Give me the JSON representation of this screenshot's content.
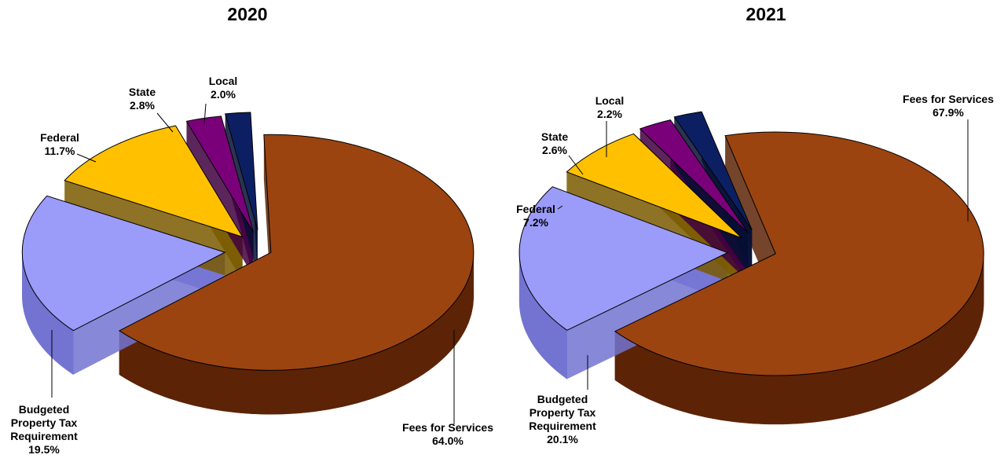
{
  "chart_data": [
    {
      "type": "pie",
      "title": "2020",
      "slices": [
        {
          "name": "Fees for Services",
          "value": 64.0,
          "label": "64.0%",
          "color": "#9B4410",
          "side_color": "#5C2306"
        },
        {
          "name": "Budgeted Property Tax Requirement",
          "value": 19.5,
          "label": "19.5%",
          "color": "#9B9BFA",
          "side_color": "#7373D2"
        },
        {
          "name": "Federal",
          "value": 11.7,
          "label": "11.7%",
          "color": "#FFC000",
          "side_color": "#7A5A00"
        },
        {
          "name": "State",
          "value": 2.8,
          "label": "2.8%",
          "color": "#7A007A",
          "side_color": "#3F003F"
        },
        {
          "name": "Local",
          "value": 2.0,
          "label": "2.0%",
          "color": "#0D1F63",
          "side_color": "#060F35"
        }
      ]
    },
    {
      "type": "pie",
      "title": "2021",
      "slices": [
        {
          "name": "Fees for Services",
          "value": 67.9,
          "label": "67.9%",
          "color": "#9B4410",
          "side_color": "#5C2306"
        },
        {
          "name": "Budgeted Property Tax Requirement",
          "value": 20.1,
          "label": "20.1%",
          "color": "#9B9BFA",
          "side_color": "#7373D2"
        },
        {
          "name": "Federal",
          "value": 7.2,
          "label": "7.2%",
          "color": "#FFC000",
          "side_color": "#7A5A00"
        },
        {
          "name": "State",
          "value": 2.6,
          "label": "2.6%",
          "color": "#7A007A",
          "side_color": "#3F003F"
        },
        {
          "name": "Local",
          "value": 2.2,
          "label": "2.2%",
          "color": "#0D1F63",
          "side_color": "#060F35"
        }
      ]
    }
  ]
}
